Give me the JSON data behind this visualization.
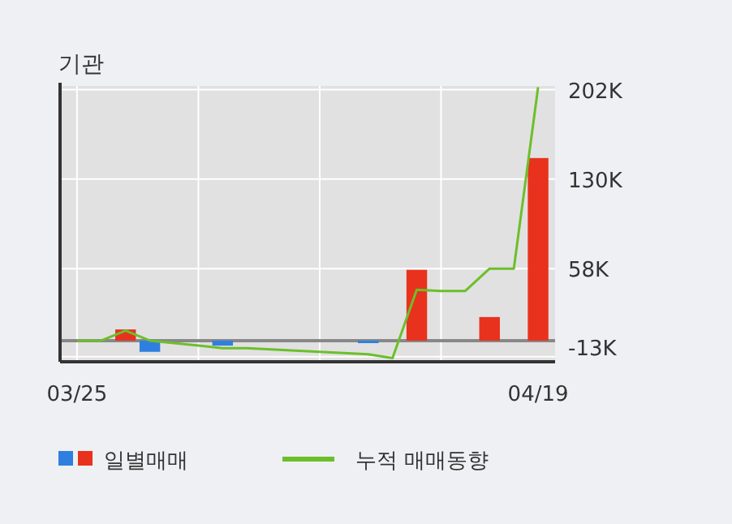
{
  "chart_data": {
    "type": "bar",
    "title": "기관",
    "categories": [
      "03/25",
      null,
      null,
      null,
      null,
      null,
      null,
      null,
      null,
      null,
      null,
      null,
      null,
      null,
      null,
      null,
      null,
      null,
      null,
      "04/19"
    ],
    "series": [
      {
        "name": "일별매매",
        "colors": [
          "#e8321e",
          "#e8321e",
          "#e8321e",
          "#2f7fe0",
          "#e8321e",
          "#e8321e",
          "#2f7fe0",
          "#e8321e",
          "#e8321e",
          "#e8321e",
          "#e8321e",
          "#e8321e",
          "#2f7fe0",
          "#e8321e",
          "#e8321e",
          "#e8321e",
          "#e8321e",
          "#e8321e",
          "#e8321e",
          "#e8321e"
        ],
        "values": [
          0,
          0,
          9000,
          -9000,
          0,
          0,
          -4000,
          0,
          0,
          0,
          0,
          0,
          -2000,
          0,
          57000,
          0,
          0,
          19000,
          0,
          147000
        ]
      },
      {
        "name": "누적 매매동향",
        "type": "line",
        "color": "#6cbf2a",
        "values": [
          0,
          0,
          8000,
          0,
          -2000,
          -4000,
          -6000,
          -6000,
          -7000,
          -8000,
          -9000,
          -10000,
          -11000,
          -14000,
          41000,
          40000,
          40000,
          58000,
          58000,
          204000
        ]
      }
    ],
    "ylim": [
      -17000,
      205000
    ],
    "yticks": [
      {
        "value": 202000,
        "label": "202K"
      },
      {
        "value": 130000,
        "label": "130K"
      },
      {
        "value": 58000,
        "label": "58K"
      },
      {
        "value": -13000,
        "label": "-13K"
      }
    ],
    "ref_lines": [
      {
        "axis": "y",
        "value": 0,
        "color": "#888888"
      }
    ],
    "grid": true,
    "legend": "bottom"
  }
}
